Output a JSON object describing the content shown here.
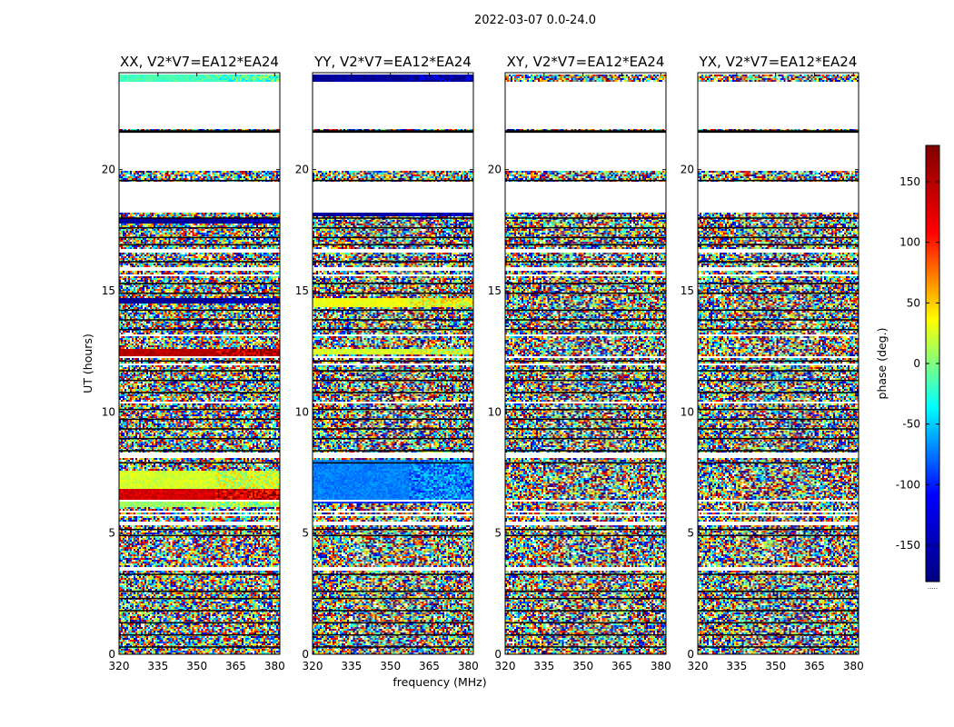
{
  "chart_data": {
    "type": "heatmap",
    "suptitle": "2022-03-07 0.0-24.0",
    "xlabel": "frequency (MHz)",
    "ylabel": "UT (hours)",
    "xlim": [
      320,
      382
    ],
    "ylim": [
      0,
      24
    ],
    "xticks": [
      320,
      335,
      350,
      365,
      380
    ],
    "yticks": [
      0,
      5,
      10,
      15,
      20
    ],
    "colorbar": {
      "label": "phase (deg.)",
      "range": [
        -180,
        180
      ],
      "ticks": [
        150,
        100,
        50,
        0,
        -50,
        -100,
        -150
      ],
      "colormap": "jet",
      "colors": [
        "#000080",
        "#0000ff",
        "#00ffff",
        "#ffff00",
        "#ff0000",
        "#800000"
      ],
      "footer": "....."
    },
    "panels": [
      {
        "title": "XX, V2*V7=EA12*EA24",
        "structured_bands": [
          {
            "t0": 12.3,
            "t1": 12.6,
            "phase": 160
          },
          {
            "t0": 14.5,
            "t1": 14.7,
            "phase": -175
          },
          {
            "t0": 6.4,
            "t1": 6.8,
            "phase": 150
          },
          {
            "t0": 6.8,
            "t1": 7.6,
            "phase": 30
          },
          {
            "t0": 6.1,
            "t1": 6.3,
            "phase": 10
          },
          {
            "t0": 23.6,
            "t1": 23.9,
            "phase": -20
          },
          {
            "t0": 17.8,
            "t1": 18.0,
            "phase": -170
          }
        ]
      },
      {
        "title": "YY, V2*V7=EA12*EA24",
        "structured_bands": [
          {
            "t0": 14.3,
            "t1": 14.7,
            "phase": 40
          },
          {
            "t0": 12.4,
            "t1": 12.6,
            "phase": 30
          },
          {
            "t0": 6.2,
            "t1": 6.4,
            "phase": -120
          },
          {
            "t0": 6.4,
            "t1": 8.0,
            "phase": -90
          },
          {
            "t0": 23.6,
            "t1": 24.0,
            "phase": -170
          },
          {
            "t0": 18.1,
            "t1": 18.3,
            "phase": -170
          }
        ]
      },
      {
        "title": "XY, V2*V7=EA12*EA24",
        "structured_bands": []
      },
      {
        "title": "YX, V2*V7=EA12*EA24",
        "structured_bands": []
      }
    ],
    "flagged_hours": [
      [
        3.45,
        3.6
      ],
      [
        5.35,
        5.45
      ],
      [
        5.7,
        5.75
      ],
      [
        5.85,
        5.95
      ],
      [
        6.3,
        6.35
      ],
      [
        8.1,
        8.3
      ],
      [
        10.35,
        10.45
      ],
      [
        11.9,
        12.0
      ],
      [
        12.2,
        12.3
      ],
      [
        13.1,
        13.2
      ],
      [
        15.6,
        15.7
      ],
      [
        15.85,
        15.95
      ],
      [
        16.6,
        16.7
      ],
      [
        17.45,
        17.5
      ],
      [
        18.2,
        19.5
      ],
      [
        19.95,
        21.5
      ],
      [
        21.65,
        23.6
      ],
      [
        23.9,
        24.0
      ]
    ],
    "dark_line_hours": [
      0.3,
      0.8,
      1.3,
      1.8,
      2.3,
      2.6,
      3.3,
      4.9,
      5.15,
      7.9,
      8.4,
      8.9,
      9.3,
      9.7,
      10.1,
      10.8,
      11.3,
      11.7,
      12.1,
      13.4,
      13.8,
      14.2,
      14.9,
      15.3,
      16.2,
      16.9,
      17.2,
      17.6,
      18.0,
      19.55,
      21.55,
      21.6
    ]
  }
}
